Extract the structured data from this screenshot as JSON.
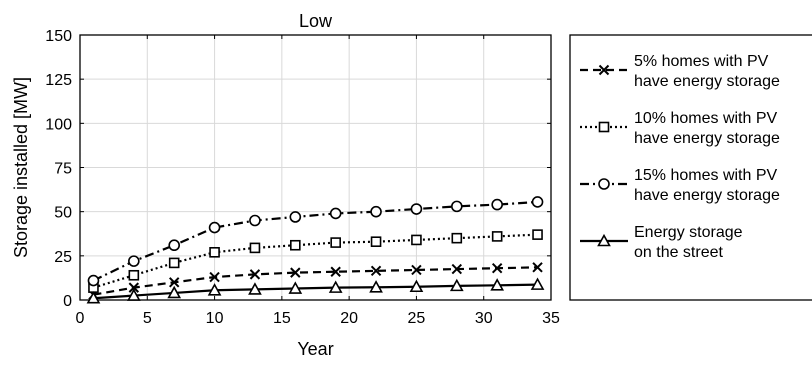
{
  "chart_data": {
    "type": "line",
    "title": "Low",
    "xlabel": "Year",
    "ylabel": "Storage installed [MW]",
    "xlim": [
      0,
      35
    ],
    "ylim": [
      0,
      150
    ],
    "xticks": [
      0,
      5,
      10,
      15,
      20,
      25,
      30,
      35
    ],
    "yticks": [
      0,
      25,
      50,
      75,
      100,
      125,
      150
    ],
    "grid": true,
    "legend_position": "outside-right",
    "x": [
      1,
      4,
      7,
      10,
      13,
      16,
      19,
      22,
      25,
      28,
      31,
      34
    ],
    "series": [
      {
        "name": "5% homes with PV have energy storage",
        "legend_lines": [
          "5% homes with PV",
          "have energy storage"
        ],
        "line_style": "dashed",
        "marker": "x",
        "values": [
          3,
          7,
          10,
          13,
          14.5,
          15.5,
          16,
          16.5,
          17,
          17.5,
          18,
          18.5
        ]
      },
      {
        "name": "10% homes with PV have energy storage",
        "legend_lines": [
          "10% homes with PV",
          "have energy storage"
        ],
        "line_style": "dotted",
        "marker": "square",
        "values": [
          7,
          14,
          21,
          27,
          29.5,
          31,
          32.5,
          33,
          34,
          35,
          36,
          37
        ]
      },
      {
        "name": "15% homes with PV have energy storage",
        "legend_lines": [
          "15% homes with PV",
          "have energy storage"
        ],
        "line_style": "dash-dot",
        "marker": "circle",
        "values": [
          11,
          22,
          31,
          41,
          45,
          47,
          49,
          50,
          51.5,
          53,
          54,
          55.5
        ]
      },
      {
        "name": "Energy storage on the street",
        "legend_lines": [
          "Energy storage",
          "on the street"
        ],
        "line_style": "solid",
        "marker": "triangle",
        "values": [
          1,
          2.5,
          4,
          5.5,
          6,
          6.5,
          7,
          7.2,
          7.5,
          8,
          8.3,
          8.7
        ]
      }
    ]
  }
}
